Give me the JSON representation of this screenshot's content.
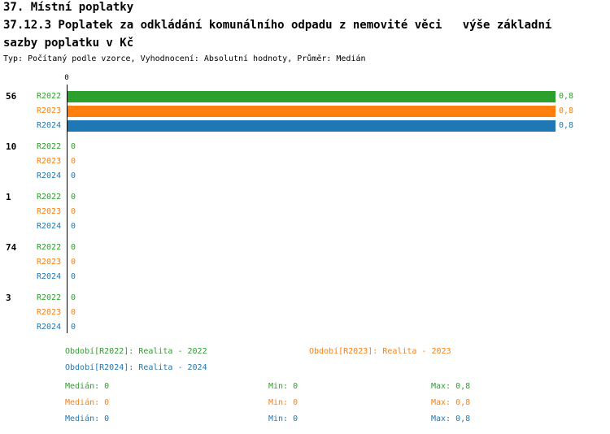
{
  "header": {
    "title_line1": "37. Místní poplatky",
    "title_line2": "37.12.3 Poplatek za odkládání komunálního odpadu z nemovité věci   výše základní",
    "title_line3": "sazby poplatku v Kč",
    "meta": "Typ: Počítaný podle vzorce, Vyhodnocení: Absolutní hodnoty, Průměr: Medián"
  },
  "chart_data": {
    "type": "bar",
    "orientation": "horizontal",
    "categories": [
      "56",
      "10",
      "1",
      "74",
      "3"
    ],
    "series": [
      {
        "name": "R2022",
        "color": "#2CA02C",
        "values": [
          0.8,
          0,
          0,
          0,
          0
        ],
        "value_labels": [
          "0,8",
          "0",
          "0",
          "0",
          "0"
        ]
      },
      {
        "name": "R2023",
        "color": "#FF7F0E",
        "values": [
          0.8,
          0,
          0,
          0,
          0
        ],
        "value_labels": [
          "0,8",
          "0",
          "0",
          "0",
          "0"
        ]
      },
      {
        "name": "R2024",
        "color": "#1F77B4",
        "values": [
          0.8,
          0,
          0,
          0,
          0
        ],
        "value_labels": [
          "0,8",
          "0",
          "0",
          "0",
          "0"
        ]
      }
    ],
    "x_axis": {
      "min": 0,
      "max": 0.8,
      "tick_label": "0"
    },
    "grid": false,
    "legend_position": "bottom"
  },
  "legend": {
    "items": [
      {
        "label": "Období[R2022]: Realita - 2022",
        "color": "#2CA02C"
      },
      {
        "label": "Období[R2023]: Realita - 2023",
        "color": "#FF7F0E"
      },
      {
        "label": "Období[R2024]: Realita - 2024",
        "color": "#1F77B4"
      }
    ]
  },
  "stats": {
    "rows": [
      {
        "median": "Medián: 0",
        "min": "Min: 0",
        "max": "Max: 0,8",
        "color": "#2CA02C"
      },
      {
        "median": "Medián: 0",
        "min": "Min: 0",
        "max": "Max: 0,8",
        "color": "#FF7F0E"
      },
      {
        "median": "Medián: 0",
        "min": "Min: 0",
        "max": "Max: 0,8",
        "color": "#1F77B4"
      }
    ]
  }
}
